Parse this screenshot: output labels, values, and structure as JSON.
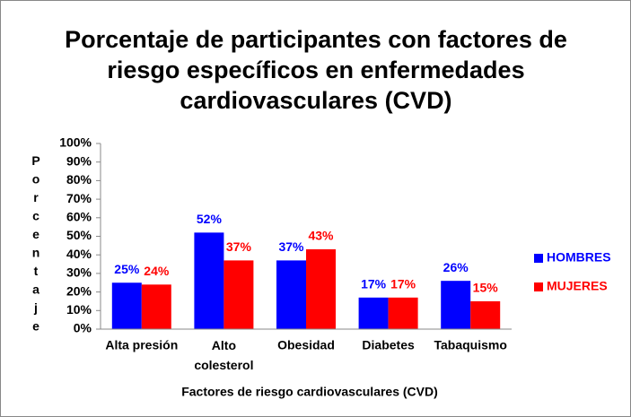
{
  "chart_data": {
    "type": "bar",
    "title": "Porcentaje de participantes con factores de riesgo específicos en enfermedades cardiovasculares (CVD)",
    "x_label": "Factores de riesgo cardiovasculares (CVD)",
    "y_label": "Porcentaje",
    "categories": [
      "Alta presión",
      "Alto colesterol",
      "Obesidad",
      "Diabetes",
      "Tabaquismo"
    ],
    "series": [
      {
        "name": "HOMBRES",
        "color": "#0000ff",
        "values": [
          25,
          52,
          37,
          17,
          26
        ],
        "value_labels": [
          "25%",
          "52%",
          "37%",
          "17%",
          "26%"
        ]
      },
      {
        "name": "MUJERES",
        "color": "#ff0000",
        "values": [
          24,
          37,
          43,
          17,
          15
        ],
        "value_labels": [
          "24%",
          "37%",
          "43%",
          "17%",
          "15%"
        ]
      }
    ],
    "ylim": [
      0,
      100
    ],
    "yticks": [
      {
        "value": 0,
        "label": "0%"
      },
      {
        "value": 10,
        "label": "10%"
      },
      {
        "value": 20,
        "label": "20%"
      },
      {
        "value": 30,
        "label": "30%"
      },
      {
        "value": 40,
        "label": "40%"
      },
      {
        "value": 50,
        "label": "50%"
      },
      {
        "value": 60,
        "label": "60%"
      },
      {
        "value": 70,
        "label": "70%"
      },
      {
        "value": 80,
        "label": "80%"
      },
      {
        "value": 90,
        "label": "90%"
      },
      {
        "value": 100,
        "label": "100%"
      }
    ],
    "legend": "right"
  }
}
